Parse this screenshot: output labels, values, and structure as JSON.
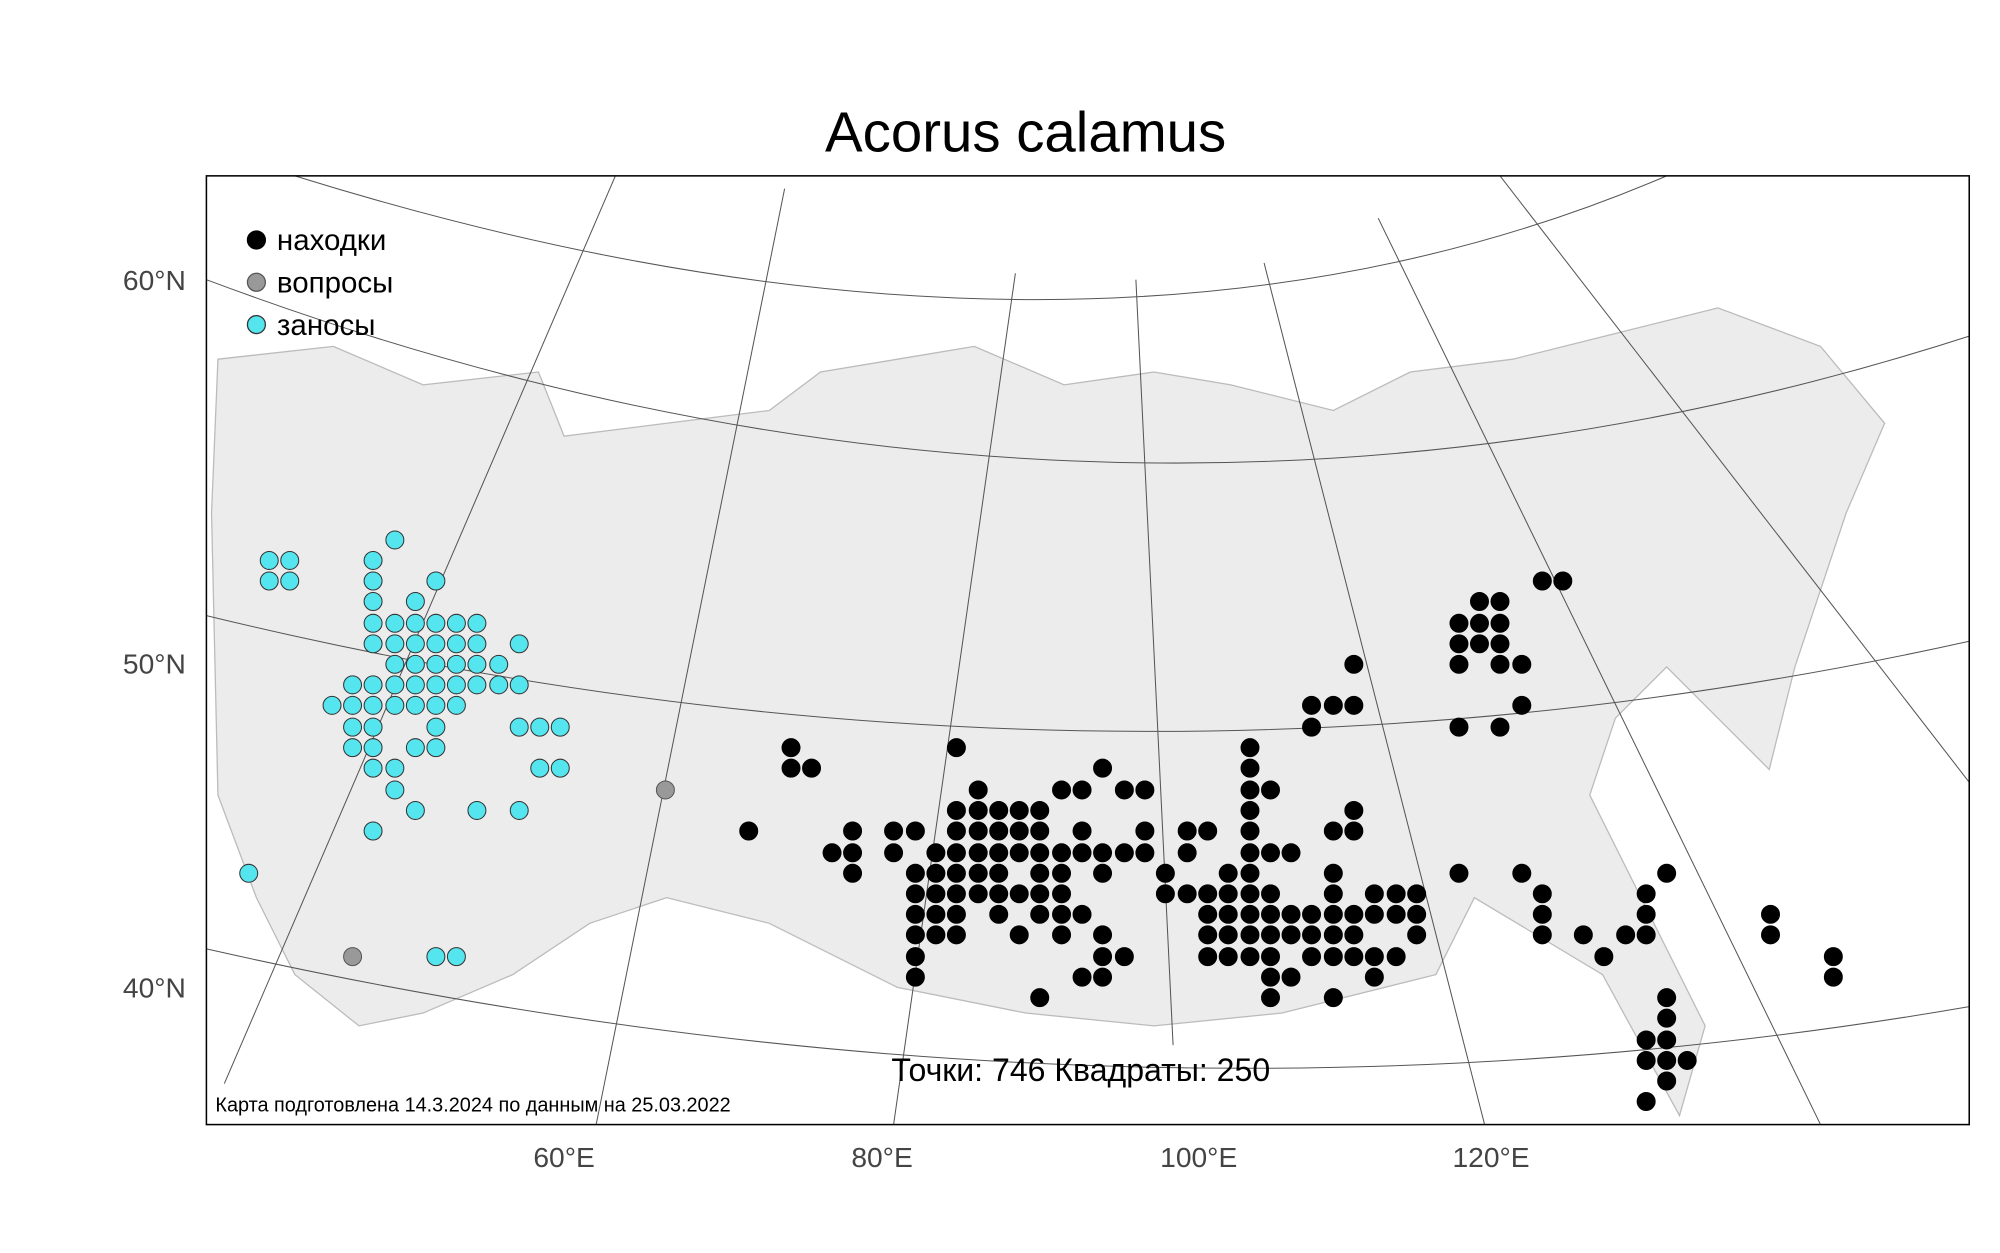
{
  "title": "Acorus calamus",
  "legend": [
    "находки",
    "вопросы",
    "заносы"
  ],
  "lat_labels": [
    "60°N",
    "50°N",
    "40°N"
  ],
  "lon_labels": [
    "60°E",
    "80°E",
    "100°E",
    "120°E"
  ],
  "stats": "Точки: 746 Квадраты: 250",
  "note": "Карта подготовлена 14.3.2024 по данным на 25.03.2022"
}
